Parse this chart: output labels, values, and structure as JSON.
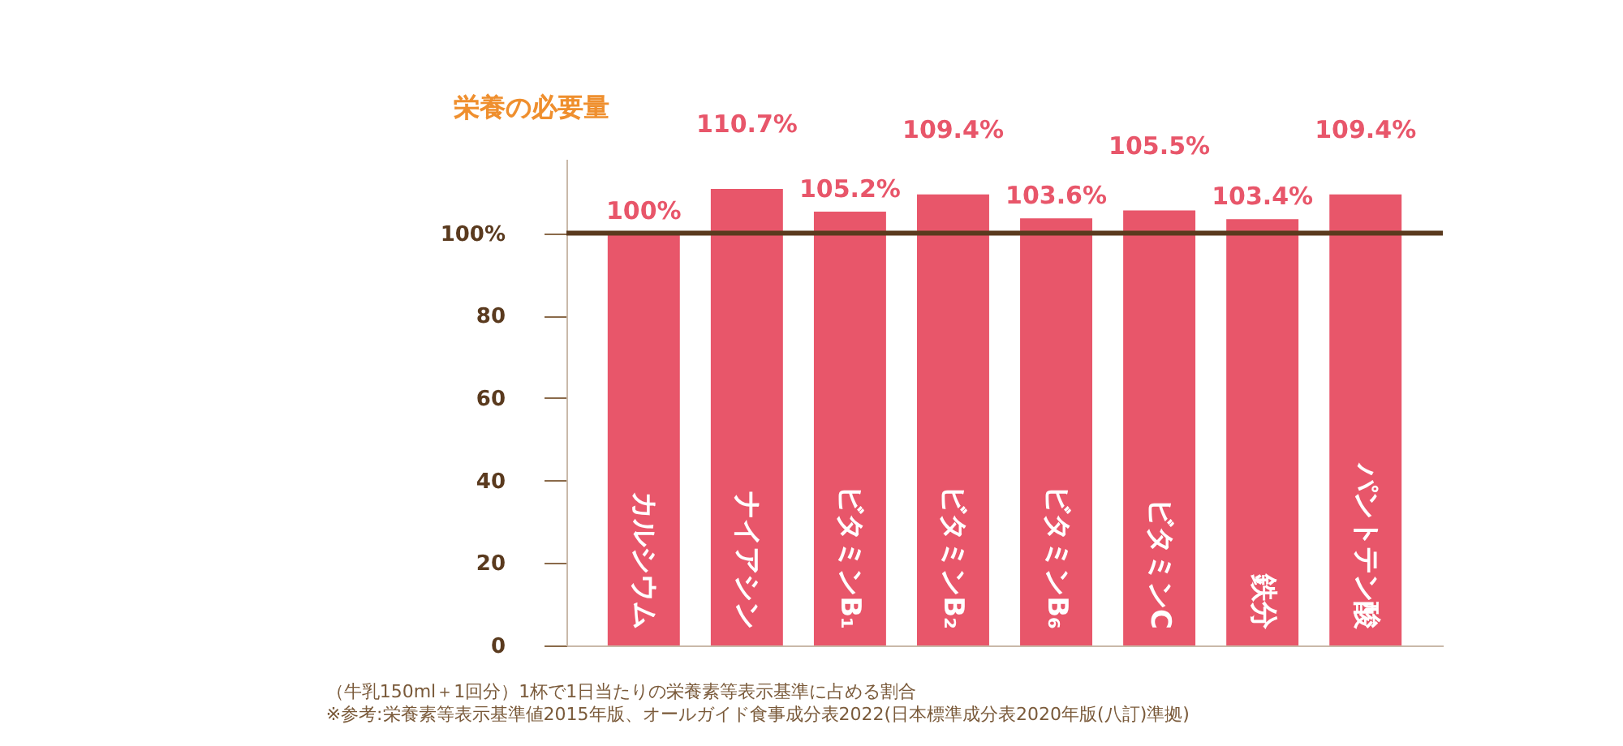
{
  "chart_data": {
    "type": "bar",
    "ylabel": "栄養の必要量",
    "categories": [
      "カルシウム",
      "ナイアシン",
      "ビタミンB₁",
      "ビタミンB₂",
      "ビタミンB₆",
      "ビタミンC",
      "鉄分",
      "パントテン酸"
    ],
    "values": [
      100,
      110.7,
      105.2,
      109.4,
      103.6,
      105.5,
      103.4,
      109.4
    ],
    "value_labels": [
      "100%",
      "110.7%",
      "105.2%",
      "109.4%",
      "103.6%",
      "105.5%",
      "103.4%",
      "109.4%"
    ],
    "color": "#e8566a",
    "ylim": [
      0,
      118
    ],
    "yticks": [
      0,
      20,
      40,
      60,
      80,
      {
        "value": 100,
        "label": "100%"
      }
    ],
    "ref_lines": [
      {
        "axis": "y",
        "value": 100,
        "color": "#5a3a1e"
      }
    ],
    "grid": false,
    "annotations": [
      "（牛乳150ml＋1回分）1杯で1日当たりの栄養素等表示基準に占める割合",
      "※参考:栄養素等表示基準値2015年版、オールガイド食事成分表2022(日本標準成分表2020年版(八訂)準拠)"
    ]
  }
}
